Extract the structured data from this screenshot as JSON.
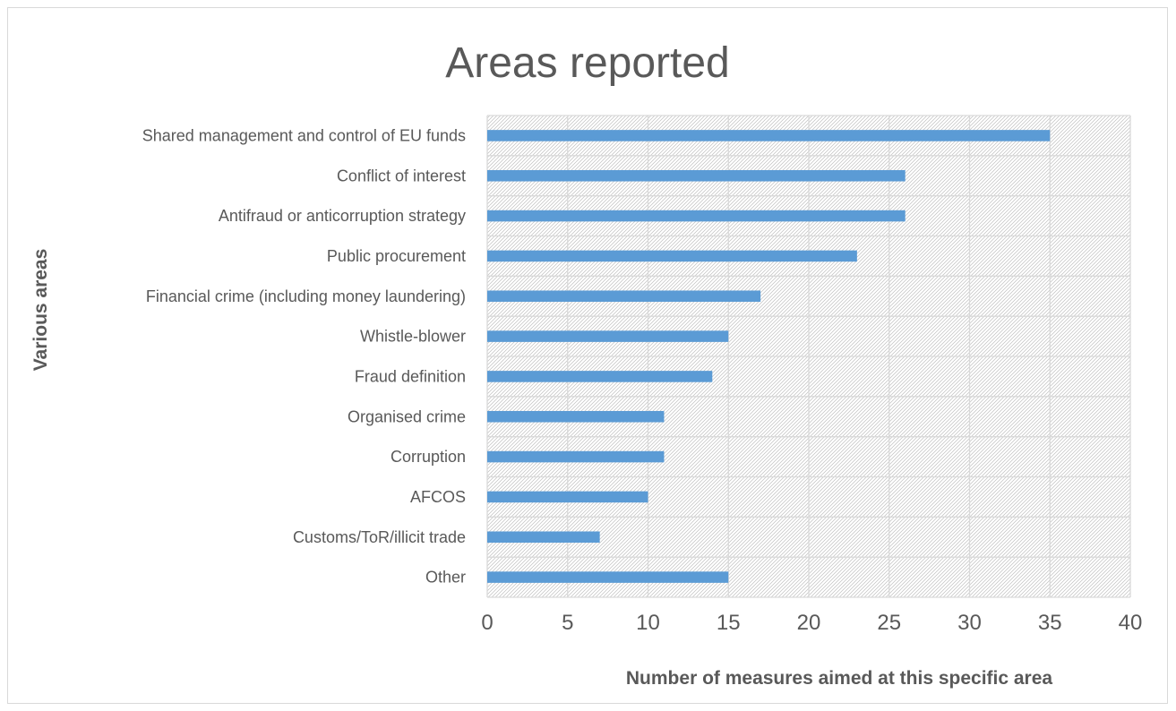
{
  "chart_data": {
    "type": "bar",
    "orientation": "horizontal",
    "title": "Areas reported",
    "xlabel": "Number of measures aimed at this specific area",
    "ylabel": "Various areas",
    "categories": [
      "Shared management and control of EU funds",
      "Conflict of interest",
      "Antifraud or anticorruption strategy",
      "Public procurement",
      "Financial crime (including money laundering)",
      "Whistle-blower",
      "Fraud definition",
      "Organised crime",
      "Corruption",
      "AFCOS",
      "Customs/ToR/illicit trade",
      "Other"
    ],
    "values": [
      35,
      26,
      26,
      23,
      17,
      15,
      14,
      11,
      11,
      10,
      7,
      15
    ],
    "xlim": [
      0,
      40
    ],
    "xticks": [
      "0",
      "5",
      "10",
      "15",
      "20",
      "25",
      "30",
      "35",
      "40"
    ],
    "grid": true,
    "plot_background": "diagonal hatch",
    "colors": {
      "bar": "#5b9bd5",
      "grid": "#d9d9d9",
      "text": "#595959",
      "hatch": "#bfbfbf"
    }
  }
}
